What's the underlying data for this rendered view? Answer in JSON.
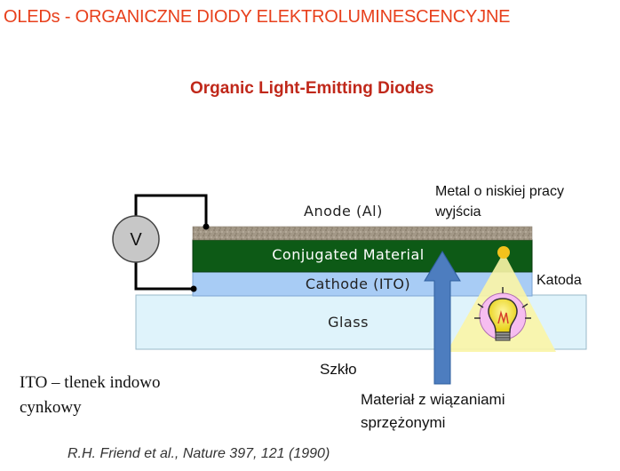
{
  "slide": {
    "title": "OLEDs - ORGANICZNE DIODY ELEKTROLUMINESCENCYJNE",
    "subtitle": "Organic Light-Emitting Diodes",
    "citation": "R.H. Friend et al., Nature 397, 121 (1990)"
  },
  "diagram": {
    "voltmeter_symbol": "V",
    "anode_label": "Anode (Al)",
    "conjugated_label": "Conjugated Material",
    "cathode_label": "Cathode (ITO)",
    "glass_label": "Glass"
  },
  "annotations": {
    "metal_line1": "Metal o niskiej pracy",
    "metal_line2": "wyjścia",
    "katoda": "Katoda",
    "szklo": "Szkło",
    "ito_line1": "ITO – tlenek indowo",
    "ito_line2": "cynkowy",
    "material_line1": "Materiał z wiązaniami",
    "material_line2": "sprzężonymi"
  },
  "icons": [
    "voltmeter-icon",
    "light-bulb-icon",
    "arrow-up-icon"
  ],
  "colors": {
    "title": "#e8401c",
    "subtitle": "#c0281a",
    "anode": "#a39887",
    "conjugated": "#0d5a16",
    "cathode": "#a8ccf5",
    "glass": "#dff3fb",
    "arrow": "#4d7dbf",
    "light": "#fbf5a6"
  }
}
